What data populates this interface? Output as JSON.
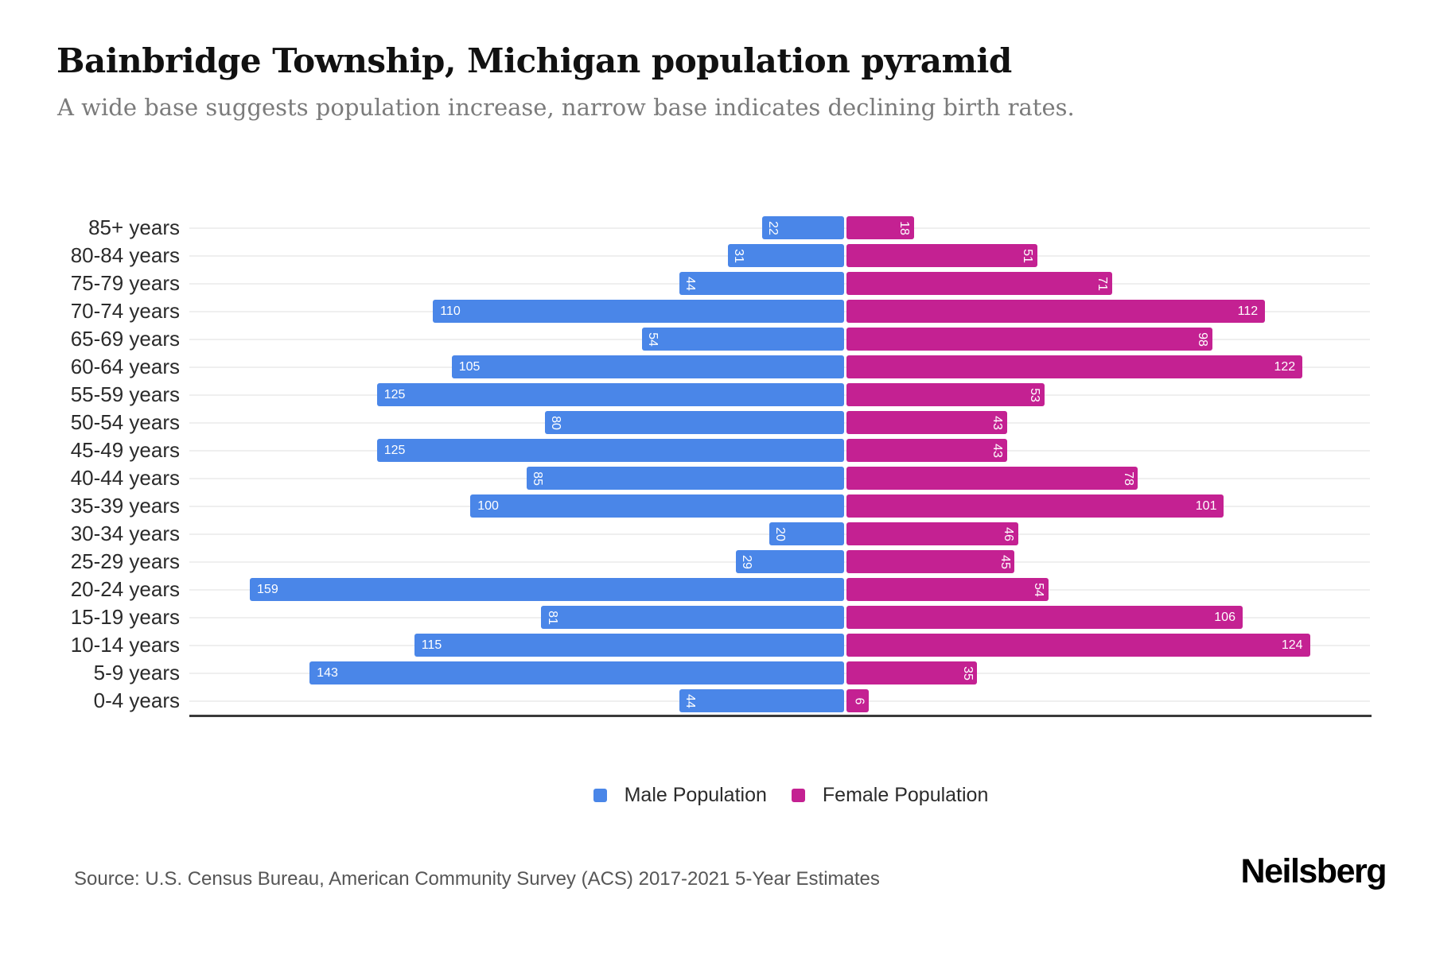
{
  "header": {
    "title": "Bainbridge Township, Michigan population pyramid",
    "subtitle": "A wide base suggests population increase, narrow base indicates declining birth rates."
  },
  "chart_data": {
    "type": "bar",
    "variant": "population-pyramid-diverging-horizontal",
    "title": "Bainbridge Township, Michigan population pyramid",
    "categories": [
      "85+ years",
      "80-84 years",
      "75-79 years",
      "70-74 years",
      "65-69 years",
      "60-64 years",
      "55-59 years",
      "50-54 years",
      "45-49 years",
      "40-44 years",
      "35-39 years",
      "30-34 years",
      "25-29 years",
      "20-24 years",
      "15-19 years",
      "10-14 years",
      "5-9 years",
      "0-4 years"
    ],
    "series": [
      {
        "name": "Male Population",
        "side": "left",
        "color": "#4A86E8",
        "values": [
          22,
          31,
          44,
          110,
          54,
          105,
          125,
          80,
          125,
          85,
          100,
          20,
          29,
          159,
          81,
          115,
          143,
          44
        ]
      },
      {
        "name": "Female Population",
        "side": "right",
        "color": "#C42192",
        "values": [
          18,
          51,
          71,
          112,
          98,
          122,
          53,
          43,
          43,
          78,
          101,
          46,
          45,
          54,
          106,
          124,
          35,
          6
        ]
      }
    ],
    "value_label_style": "white, inside bar at outer end; values 100+ horizontal, under 100 rotated 90deg",
    "axis": {
      "grid": true,
      "gridline_color": "#EFEFEF",
      "baseline_color": "#3A3A3A"
    },
    "legend_position": "bottom-center"
  },
  "footer": {
    "source": "Source: U.S. Census Bureau, American Community Survey (ACS) 2017-2021 5-Year Estimates",
    "brand": "Neilsberg"
  }
}
